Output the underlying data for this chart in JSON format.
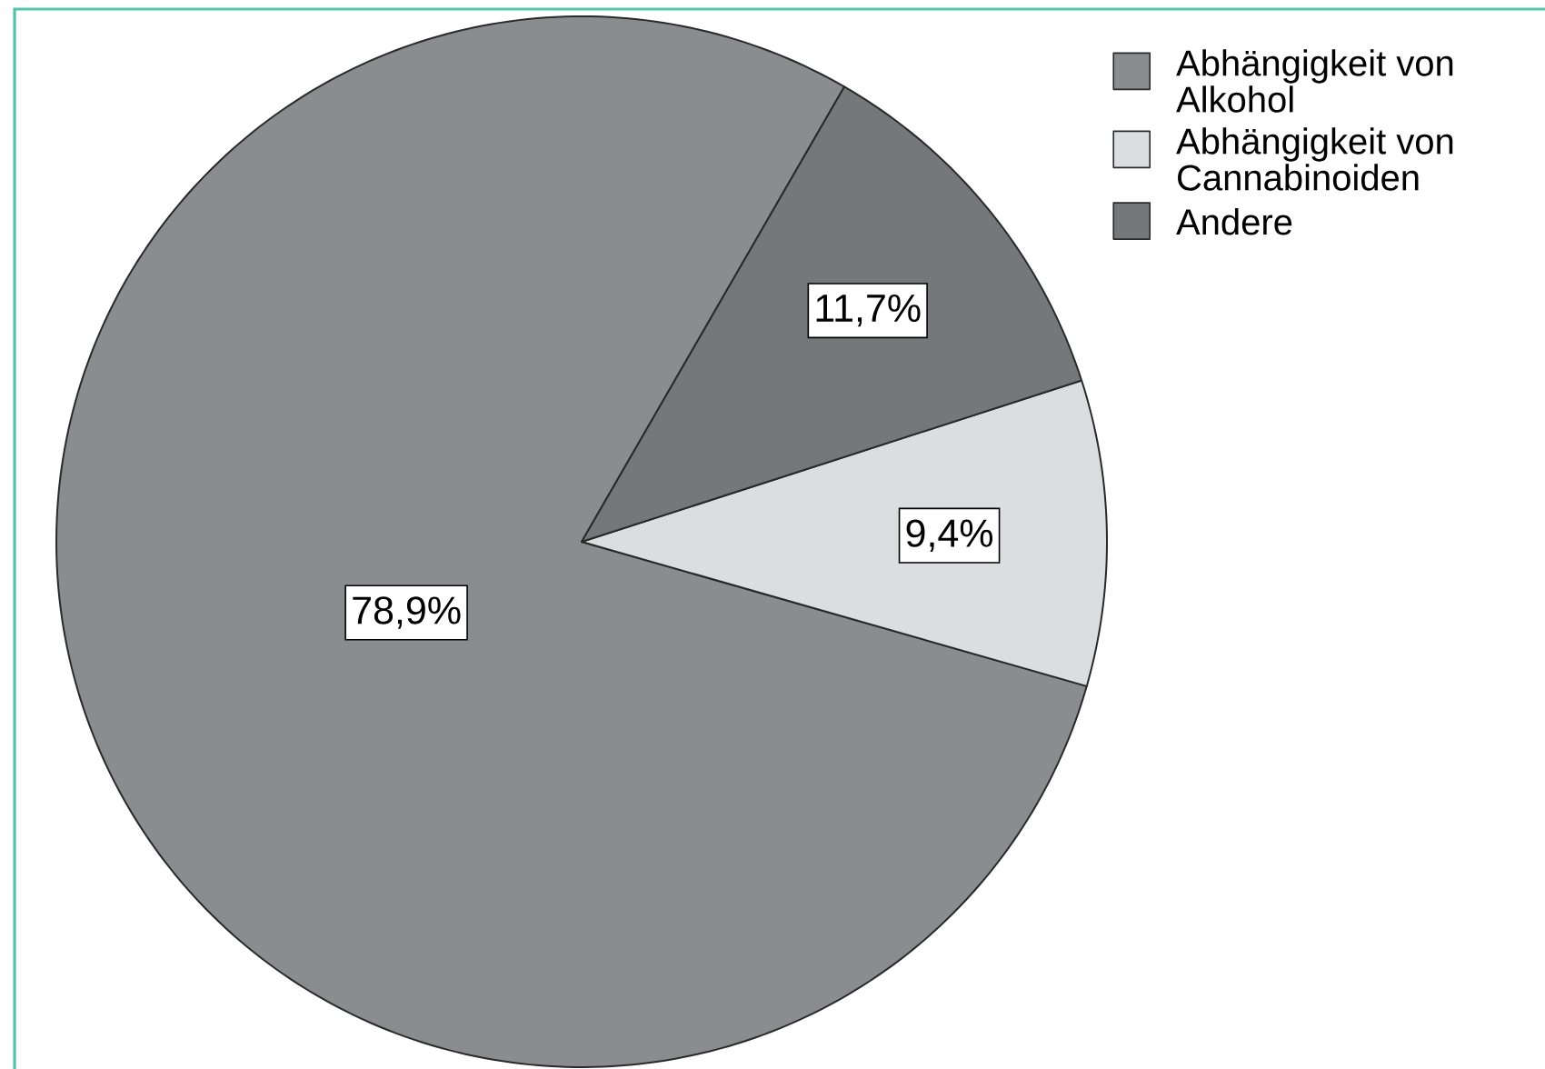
{
  "chart_data": {
    "type": "pie",
    "categories": [
      "Abhängigkeit von Alkohol",
      "Abhängigkeit von Cannabinoiden",
      "Andere"
    ],
    "values": [
      78.9,
      9.4,
      11.7
    ],
    "colors": [
      "#8b8c90",
      "#dcdde0",
      "#76777b"
    ],
    "value_labels": [
      "78,9%",
      "9,4%",
      "11,7%"
    ],
    "legend": "top right"
  }
}
